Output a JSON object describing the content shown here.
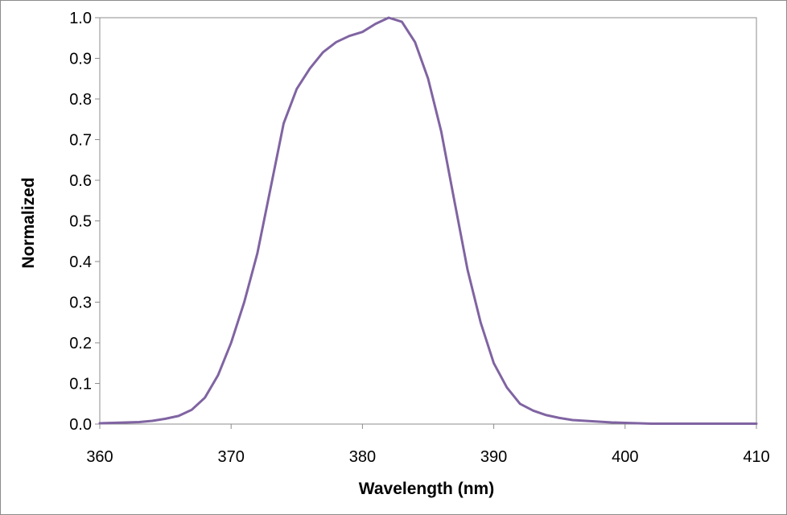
{
  "chart_data": {
    "type": "line",
    "title": "",
    "xlabel": "Wavelength (nm)",
    "ylabel": "Normalized",
    "xlim": [
      360,
      410
    ],
    "ylim": [
      0.0,
      1.0
    ],
    "x_ticks": [
      360,
      370,
      380,
      390,
      400,
      410
    ],
    "y_ticks": [
      "0.0",
      "0.1",
      "0.2",
      "0.3",
      "0.4",
      "0.5",
      "0.6",
      "0.7",
      "0.8",
      "0.9",
      "1.0"
    ],
    "grid": false,
    "legend": "none",
    "series": [
      {
        "color": "#8064a2",
        "x": [
          360,
          361,
          362,
          363,
          364,
          365,
          366,
          367,
          368,
          369,
          370,
          371,
          372,
          373,
          374,
          375,
          376,
          377,
          378,
          379,
          380,
          381,
          382,
          383,
          384,
          385,
          386,
          387,
          388,
          389,
          390,
          391,
          392,
          393,
          394,
          395,
          396,
          397,
          398,
          399,
          400,
          401,
          402,
          403,
          404,
          405,
          406,
          407,
          408,
          409,
          410
        ],
        "y": [
          0.002,
          0.003,
          0.004,
          0.005,
          0.008,
          0.013,
          0.02,
          0.035,
          0.065,
          0.12,
          0.2,
          0.3,
          0.42,
          0.58,
          0.74,
          0.825,
          0.875,
          0.915,
          0.94,
          0.955,
          0.965,
          0.985,
          1.0,
          0.99,
          0.94,
          0.85,
          0.72,
          0.55,
          0.38,
          0.25,
          0.15,
          0.09,
          0.05,
          0.033,
          0.022,
          0.015,
          0.01,
          0.008,
          0.006,
          0.004,
          0.003,
          0.002,
          0.001,
          0.001,
          0.001,
          0.001,
          0.001,
          0.001,
          0.001,
          0.001,
          0.001
        ]
      }
    ]
  }
}
